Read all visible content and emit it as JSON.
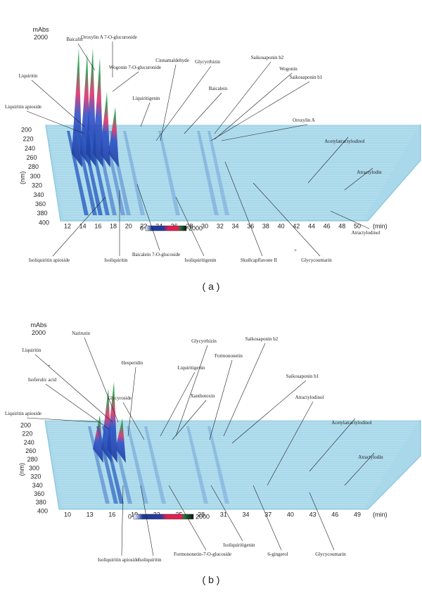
{
  "panels": [
    {
      "label": "( a )",
      "intensity_unit": "mAbs",
      "intensity_max": "2000",
      "y_axis_label": "(nm)",
      "x_axis_label": "(min)",
      "x_ticks": [
        "12",
        "14",
        "16",
        "18",
        "20",
        "22",
        "24",
        "26",
        "28",
        "30",
        "32",
        "34",
        "36",
        "38",
        "40",
        "42",
        "44",
        "46",
        "48",
        "50"
      ],
      "y_ticks": [
        "200",
        "220",
        "240",
        "260",
        "280",
        "300",
        "320",
        "340",
        "360",
        "380",
        "400"
      ],
      "scale_min": "0",
      "scale_max": "2000",
      "compounds": [
        "Baicalin",
        "Oroxylin A 7-O-glucuronide",
        "Wogonin 7-O-glucuronide",
        "Cinnamaldehyde",
        "Glycyrrhizin",
        "Saikosaponin b2",
        "Liquiritin",
        "Liquiritigenin",
        "Baicalein",
        "Wogonin",
        "Saikosaponin b1",
        "Liquiritin apioside",
        "Oroxylin A",
        "Acetylatractylodinol",
        "Atractylodin",
        "Isoliquiritin apioside",
        "Isoliquiritin",
        "Baicalein 7-O-glucoside",
        "Isoliquiritigenin",
        "Skullcapflavone II",
        "+",
        "Glycycoumarin",
        "Atractylodinol"
      ]
    },
    {
      "label": "( b )",
      "intensity_unit": "mAbs",
      "intensity_max": "2000",
      "y_axis_label": "(nm)",
      "x_axis_label": "(min)",
      "x_ticks": [
        "10",
        "13",
        "16",
        "19",
        "22",
        "25",
        "28",
        "31",
        "34",
        "37",
        "40",
        "43",
        "46",
        "49"
      ],
      "y_ticks": [
        "200",
        "220",
        "240",
        "260",
        "280",
        "300",
        "320",
        "340",
        "360",
        "380",
        "400"
      ],
      "scale_min": "0",
      "scale_max": "2000",
      "compounds": [
        "Narirutin",
        "Hesperidin",
        "Glycyrrhizin",
        "Saikosaponin b2",
        "Saikosaponin b1",
        "Liquiritin",
        "+",
        "Isoferulic acid",
        "Liquiritigenin",
        "Formononetin",
        "Glycyroside",
        "Xanthotoxin",
        "Atractylodinol",
        "Acetylatractylodinol",
        "Atractylodin",
        "Liquiritin apioside",
        "Isoliquiritin apioside",
        "Isoliquiritin",
        "Formononetin-7-O-glucoside",
        "Isoliquiritigenin",
        "6-gingerol",
        "Glycycoumarin"
      ]
    }
  ]
}
